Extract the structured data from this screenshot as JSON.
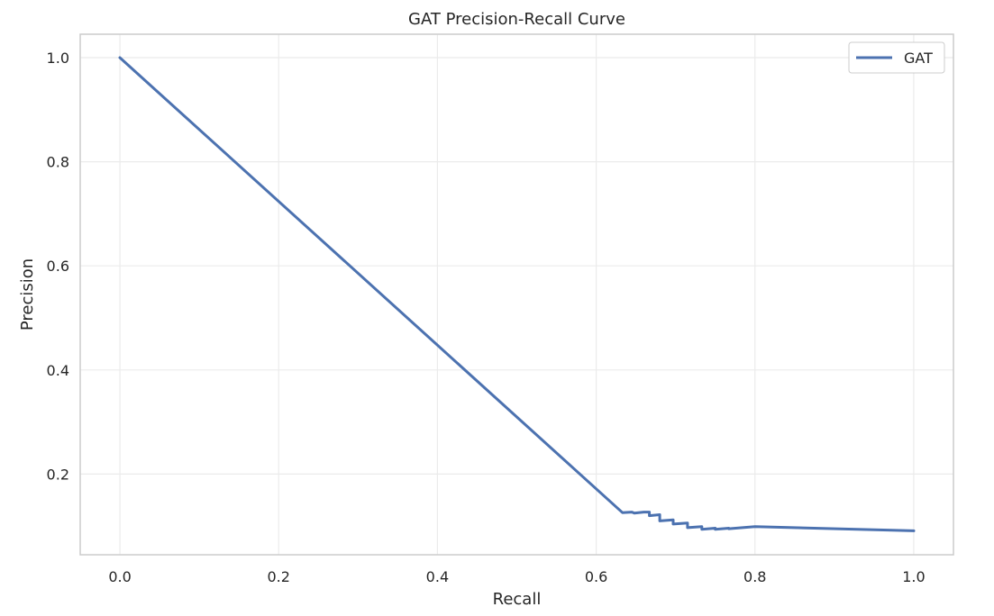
{
  "chart_data": {
    "type": "line",
    "title": "GAT Precision-Recall Curve",
    "xlabel": "Recall",
    "ylabel": "Precision",
    "xlim": [
      -0.05,
      1.05
    ],
    "ylim": [
      0.045,
      1.045
    ],
    "xticks": [
      "0.0",
      "0.2",
      "0.4",
      "0.6",
      "0.8",
      "1.0"
    ],
    "yticks": [
      "0.2",
      "0.4",
      "0.6",
      "0.8",
      "1.0"
    ],
    "grid": true,
    "legend": {
      "position": "top-right"
    },
    "series": [
      {
        "name": "GAT",
        "color": "#4c72b0",
        "x": [
          0.0,
          0.633,
          0.645,
          0.648,
          0.66,
          0.667,
          0.667,
          0.68,
          0.68,
          0.697,
          0.697,
          0.715,
          0.715,
          0.733,
          0.733,
          0.75,
          0.75,
          0.767,
          0.767,
          0.8,
          1.0
        ],
        "y": [
          1.0,
          0.126,
          0.127,
          0.125,
          0.127,
          0.127,
          0.12,
          0.122,
          0.11,
          0.112,
          0.104,
          0.106,
          0.097,
          0.099,
          0.094,
          0.096,
          0.094,
          0.096,
          0.095,
          0.099,
          0.091
        ]
      }
    ]
  }
}
